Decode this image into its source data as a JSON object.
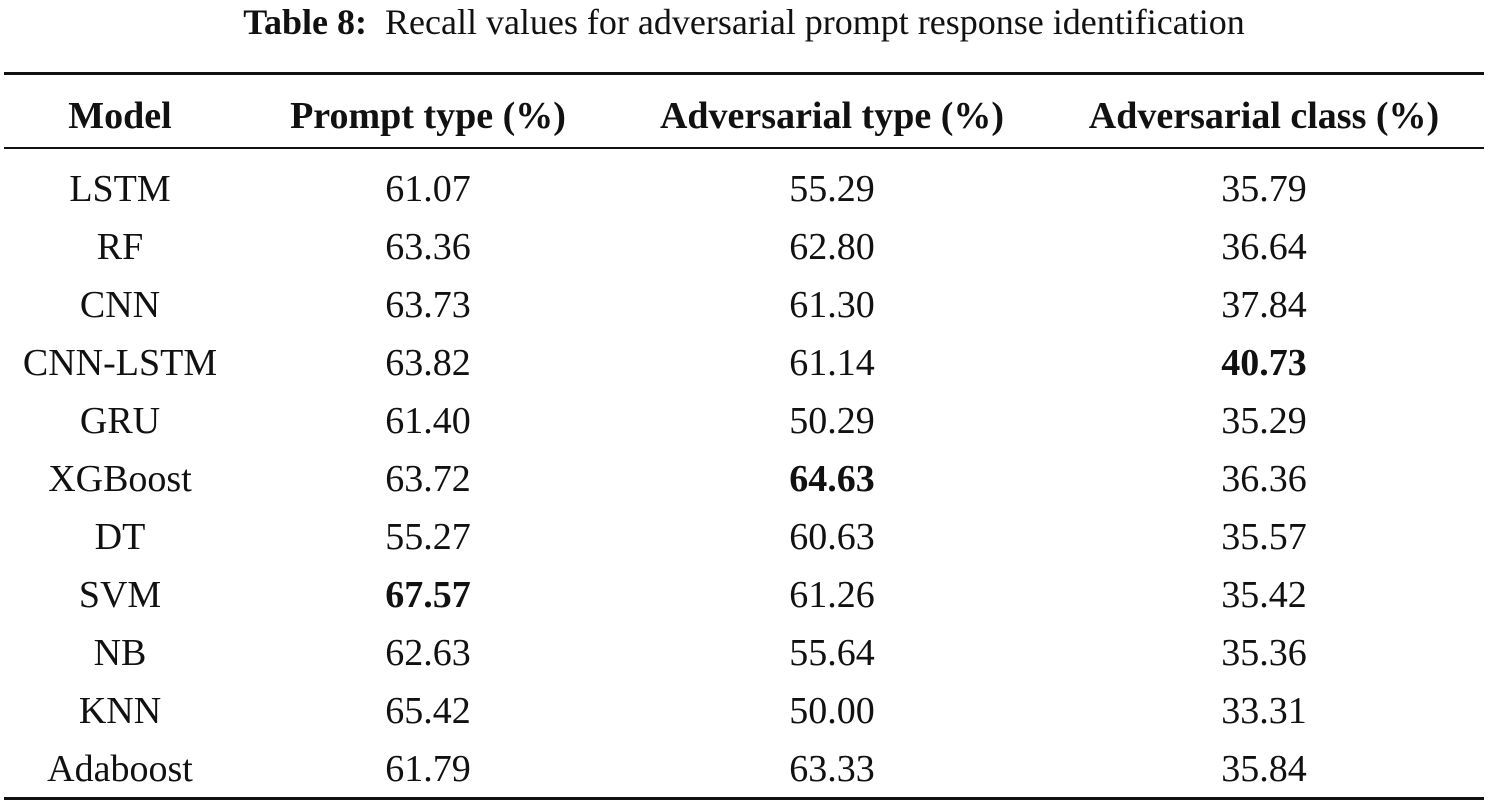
{
  "caption": {
    "label": "Table 8:",
    "text": "Recall values for adversarial prompt response identification"
  },
  "table": {
    "headers": [
      "Model",
      "Prompt type (%)",
      "Adversarial type (%)",
      "Adversarial class (%)"
    ],
    "rows": [
      {
        "model": "LSTM",
        "prompt_type": "61.07",
        "adversarial_type": "55.29",
        "adversarial_class": "35.79"
      },
      {
        "model": "RF",
        "prompt_type": "63.36",
        "adversarial_type": "62.80",
        "adversarial_class": "36.64"
      },
      {
        "model": "CNN",
        "prompt_type": "63.73",
        "adversarial_type": "61.30",
        "adversarial_class": "37.84"
      },
      {
        "model": "CNN-LSTM",
        "prompt_type": "63.82",
        "adversarial_type": "61.14",
        "adversarial_class": "40.73"
      },
      {
        "model": "GRU",
        "prompt_type": "61.40",
        "adversarial_type": "50.29",
        "adversarial_class": "35.29"
      },
      {
        "model": "XGBoost",
        "prompt_type": "63.72",
        "adversarial_type": "64.63",
        "adversarial_class": "36.36"
      },
      {
        "model": "DT",
        "prompt_type": "55.27",
        "adversarial_type": "60.63",
        "adversarial_class": "35.57"
      },
      {
        "model": "SVM",
        "prompt_type": "67.57",
        "adversarial_type": "61.26",
        "adversarial_class": "35.42"
      },
      {
        "model": "NB",
        "prompt_type": "62.63",
        "adversarial_type": "55.64",
        "adversarial_class": "35.36"
      },
      {
        "model": "KNN",
        "prompt_type": "65.42",
        "adversarial_type": "50.00",
        "adversarial_class": "33.31"
      },
      {
        "model": "Adaboost",
        "prompt_type": "61.79",
        "adversarial_type": "63.33",
        "adversarial_class": "35.84"
      }
    ]
  }
}
